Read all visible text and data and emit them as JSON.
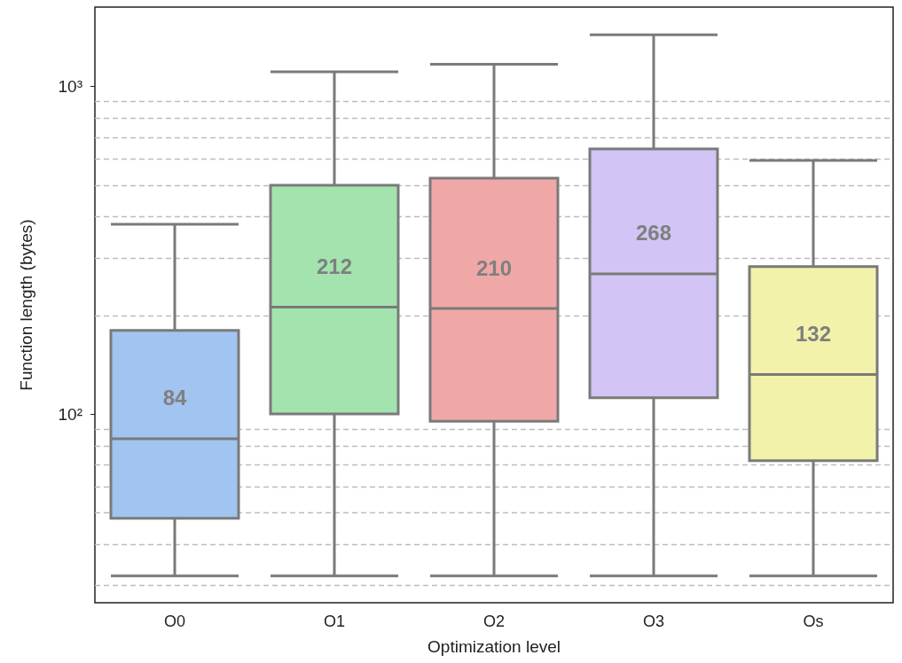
{
  "chart_data": {
    "type": "box",
    "xlabel": "Optimization level",
    "ylabel": "Function length (bytes)",
    "categories": [
      "O0",
      "O1",
      "O2",
      "O3",
      "Os"
    ],
    "colors": [
      "#a1c4f0",
      "#a3e4ae",
      "#f0a8a6",
      "#d2c4f4",
      "#f2f2aa"
    ],
    "boxes": [
      {
        "low": 32,
        "q1": 48,
        "median": 84,
        "q3": 180,
        "high": 380
      },
      {
        "low": 32,
        "q1": 100,
        "median": 212,
        "q3": 500,
        "high": 1110
      },
      {
        "low": 32,
        "q1": 95,
        "median": 210,
        "q3": 525,
        "high": 1170
      },
      {
        "low": 32,
        "q1": 112,
        "median": 268,
        "q3": 645,
        "high": 1440
      },
      {
        "low": 32,
        "q1": 72,
        "median": 132,
        "q3": 282,
        "high": 595
      }
    ],
    "annotations": [
      "84",
      "212",
      "210",
      "268",
      "132"
    ],
    "log": "y",
    "ylim": [
      26.5,
      1750
    ],
    "yticks": [
      {
        "value": 30,
        "label": null
      },
      {
        "value": 40,
        "label": null
      },
      {
        "value": 50,
        "label": null
      },
      {
        "value": 60,
        "label": null
      },
      {
        "value": 70,
        "label": null
      },
      {
        "value": 80,
        "label": null
      },
      {
        "value": 90,
        "label": null
      },
      {
        "value": 100,
        "label": "10²"
      },
      {
        "value": 200,
        "label": null
      },
      {
        "value": 300,
        "label": null
      },
      {
        "value": 400,
        "label": null
      },
      {
        "value": 500,
        "label": null
      },
      {
        "value": 600,
        "label": null
      },
      {
        "value": 700,
        "label": null
      },
      {
        "value": 800,
        "label": null
      },
      {
        "value": 900,
        "label": null
      },
      {
        "value": 1000,
        "label": "10³"
      }
    ],
    "grid": "y"
  }
}
